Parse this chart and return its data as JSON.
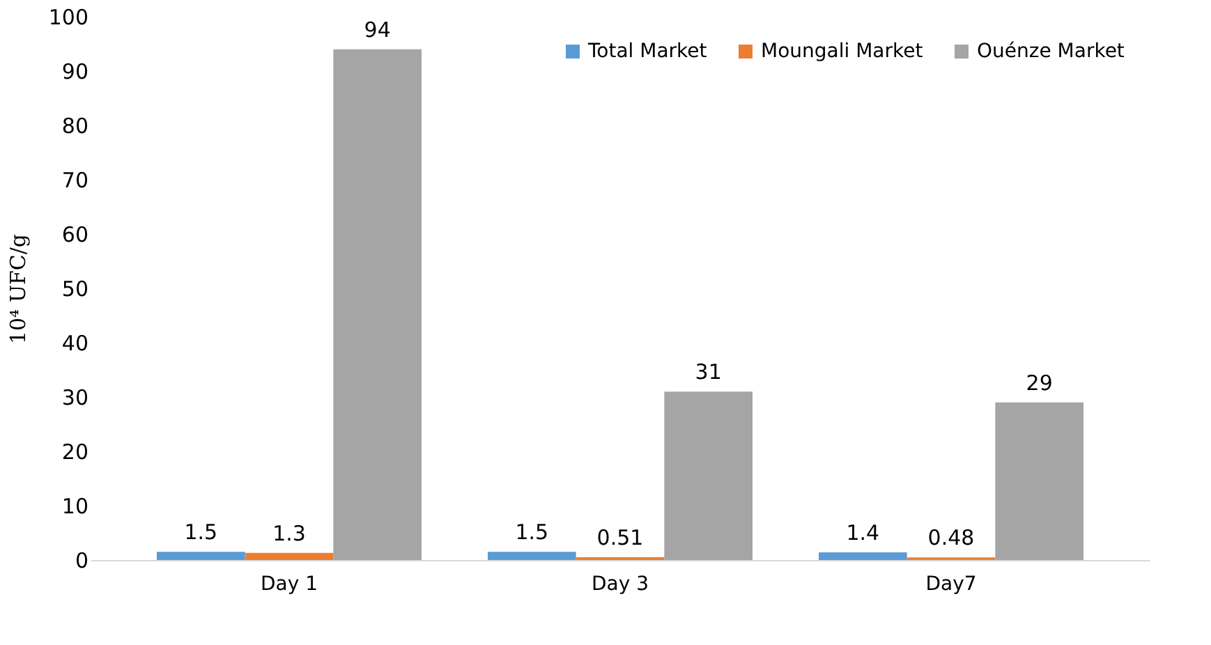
{
  "chart_data": {
    "type": "bar",
    "ylabel": "10⁴ UFC/g",
    "categories": [
      "Day 1",
      "Day 3",
      "Day7"
    ],
    "series": [
      {
        "name": "Total Market",
        "color": "#5b9bd5",
        "values": [
          1.5,
          1.5,
          1.4
        ]
      },
      {
        "name": "Moungali Market",
        "color": "#ed7d31",
        "values": [
          1.3,
          0.51,
          0.48
        ]
      },
      {
        "name": "Ouénze Market",
        "color": "#a5a5a5",
        "values": [
          94,
          31,
          29
        ]
      }
    ],
    "ylim": [
      0,
      100
    ],
    "yticks": [
      0,
      10,
      20,
      30,
      40,
      50,
      60,
      70,
      80,
      90,
      100
    ],
    "data_labels": true,
    "grid": false,
    "legend": "top right"
  }
}
